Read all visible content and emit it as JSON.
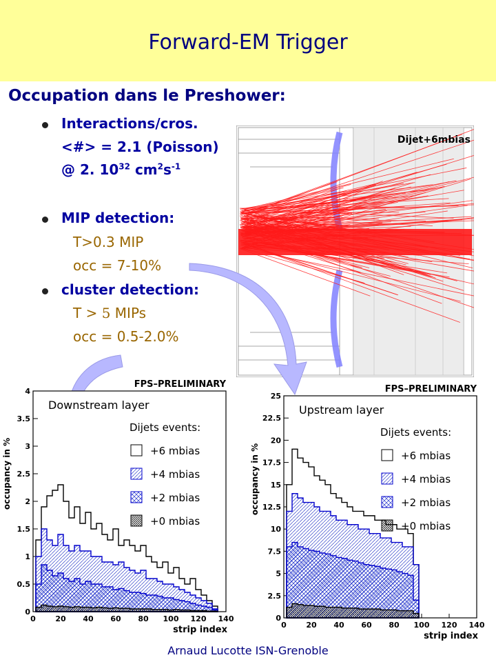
{
  "slide": {
    "title": "Forward-EM Trigger",
    "subtitle": "Occupation dans le Preshower:",
    "footer": "Arnaud Lucotte  ISN-Grenoble",
    "colors": {
      "header_bg": "#ffff99",
      "title": "#000080",
      "bullets": "#0000a0",
      "values": "#996600",
      "arrow": "#b8b8ff"
    }
  },
  "bullets": {
    "b1": {
      "line1": "Interactions/cros.",
      "line2": "<#> = 2.1 (Poisson)",
      "line3_prefix": "@ 2. 10",
      "line3_exp": "32",
      "line3_unit": " cm",
      "line3_cm_exp": "2",
      "line3_s": "s",
      "line3_s_exp": "-1"
    },
    "b2": {
      "heading": "MIP detection:",
      "threshold": "T>0.3 MIP",
      "occ": "occ = 7-10%"
    },
    "b3": {
      "heading": "cluster detection:",
      "threshold_prefix": "T > ",
      "threshold_num": "5",
      "threshold_unit": " MIPs",
      "occ": "occ = 0.5-2.0%"
    }
  },
  "event_display": {
    "label": "Dijet+6mbias",
    "icon": "event-display-image"
  },
  "chart_data": [
    {
      "type": "histogram",
      "title": "Downstream layer",
      "stamp": "FPS–PRELIMINARY",
      "xlabel": "strip index",
      "ylabel": "occupancy in %",
      "xlim": [
        0,
        140
      ],
      "ylim": [
        0,
        4
      ],
      "xticks": [
        "0",
        "20",
        "40",
        "60",
        "80",
        "100",
        "120",
        "140"
      ],
      "yticks": [
        "0",
        "0.5",
        "1",
        "1.5",
        "2",
        "2.5",
        "3",
        "3.5",
        "4"
      ],
      "legend_title": "Dijets events:",
      "x": [
        4,
        8,
        12,
        16,
        20,
        24,
        28,
        32,
        36,
        40,
        44,
        48,
        52,
        56,
        60,
        64,
        68,
        72,
        76,
        80,
        84,
        88,
        92,
        96,
        100,
        104,
        108,
        112,
        116,
        120,
        124,
        128,
        132
      ],
      "series": [
        {
          "name": "+6 mbias",
          "style": "outline",
          "color": "#000000",
          "values": [
            1.3,
            1.9,
            2.1,
            2.2,
            2.3,
            2.0,
            1.7,
            1.9,
            1.6,
            1.8,
            1.5,
            1.6,
            1.4,
            1.3,
            1.5,
            1.2,
            1.3,
            1.2,
            1.1,
            1.2,
            1.0,
            0.9,
            0.8,
            0.9,
            0.7,
            0.8,
            0.6,
            0.5,
            0.6,
            0.4,
            0.3,
            0.2,
            0.1
          ]
        },
        {
          "name": "+4 mbias",
          "style": "diagonal-hatch",
          "color": "#0000cc",
          "values": [
            1.0,
            1.5,
            1.3,
            1.2,
            1.4,
            1.2,
            1.1,
            1.2,
            1.1,
            1.1,
            1.0,
            1.0,
            0.9,
            0.9,
            0.85,
            0.9,
            0.8,
            0.75,
            0.7,
            0.75,
            0.6,
            0.6,
            0.55,
            0.5,
            0.5,
            0.45,
            0.4,
            0.35,
            0.3,
            0.25,
            0.2,
            0.15,
            0.05
          ]
        },
        {
          "name": "+2 mbias",
          "style": "crosshatch",
          "color": "#0000cc",
          "values": [
            0.5,
            0.85,
            0.75,
            0.65,
            0.7,
            0.6,
            0.55,
            0.6,
            0.5,
            0.55,
            0.5,
            0.5,
            0.45,
            0.45,
            0.4,
            0.42,
            0.38,
            0.35,
            0.35,
            0.33,
            0.3,
            0.3,
            0.28,
            0.25,
            0.25,
            0.22,
            0.2,
            0.18,
            0.15,
            0.12,
            0.1,
            0.08,
            0.03
          ]
        },
        {
          "name": "+0 mbias",
          "style": "dense-crosshatch",
          "color": "#000000",
          "values": [
            0.08,
            0.12,
            0.1,
            0.09,
            0.1,
            0.09,
            0.08,
            0.09,
            0.08,
            0.08,
            0.07,
            0.08,
            0.07,
            0.06,
            0.07,
            0.06,
            0.06,
            0.05,
            0.05,
            0.05,
            0.05,
            0.04,
            0.04,
            0.04,
            0.03,
            0.04,
            0.03,
            0.03,
            0.02,
            0.02,
            0.02,
            0.01,
            0.01
          ]
        }
      ]
    },
    {
      "type": "histogram",
      "title": "Upstream layer",
      "stamp": "FPS–PRELIMINARY",
      "xlabel": "strip index",
      "ylabel": "occupancy in %",
      "xlim": [
        0,
        140
      ],
      "ylim": [
        0,
        25
      ],
      "xticks": [
        "0",
        "20",
        "40",
        "60",
        "80",
        "100",
        "120",
        "140"
      ],
      "yticks": [
        "0",
        "2.5",
        "5",
        "7.5",
        "10",
        "12.5",
        "15",
        "17.5",
        "20",
        "22.5",
        "25"
      ],
      "legend_title": "Dijets events:",
      "x": [
        4,
        8,
        12,
        16,
        20,
        24,
        28,
        32,
        36,
        40,
        44,
        48,
        52,
        56,
        60,
        64,
        68,
        72,
        76,
        80,
        84,
        88,
        92,
        96
      ],
      "series": [
        {
          "name": "+6 mbias",
          "style": "outline",
          "color": "#000000",
          "values": [
            15,
            19,
            18,
            17.5,
            17,
            16,
            15.5,
            15,
            14,
            13.5,
            13,
            12.5,
            12,
            12,
            11.5,
            11.5,
            11,
            11,
            10.5,
            10.5,
            10,
            10,
            9.5,
            6
          ]
        },
        {
          "name": "+4 mbias",
          "style": "diagonal-hatch",
          "color": "#0000cc",
          "values": [
            12,
            14,
            13.5,
            13,
            13,
            12.5,
            12,
            12,
            11.5,
            11,
            11,
            10.5,
            10.5,
            10,
            10,
            9.5,
            9.5,
            9,
            9,
            8.5,
            8.5,
            8,
            8,
            6
          ]
        },
        {
          "name": "+2 mbias",
          "style": "crosshatch",
          "color": "#0000cc",
          "values": [
            8,
            8.5,
            8,
            7.8,
            7.6,
            7.5,
            7.3,
            7.2,
            7,
            6.8,
            6.7,
            6.5,
            6.4,
            6.2,
            6,
            5.9,
            5.8,
            5.6,
            5.5,
            5.4,
            5.2,
            5,
            4.8,
            2
          ]
        },
        {
          "name": "+0 mbias",
          "style": "dense-crosshatch",
          "color": "#000000",
          "values": [
            1.2,
            1.6,
            1.5,
            1.4,
            1.4,
            1.3,
            1.3,
            1.2,
            1.2,
            1.2,
            1.1,
            1.1,
            1.1,
            1.0,
            1.0,
            1.0,
            1.0,
            0.9,
            0.9,
            0.9,
            0.8,
            0.8,
            0.8,
            0.5
          ]
        }
      ]
    }
  ]
}
